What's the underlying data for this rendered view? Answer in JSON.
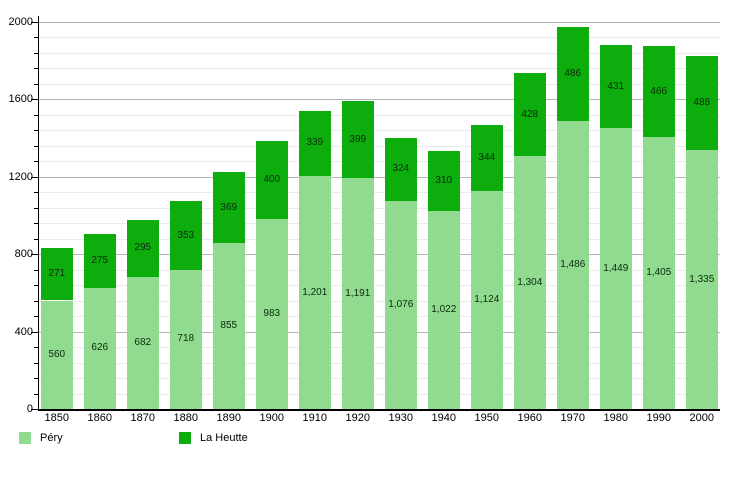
{
  "chart_data": {
    "type": "bar",
    "stacked": true,
    "title": "",
    "xlabel": "",
    "ylabel": "",
    "categories": [
      "1850",
      "1860",
      "1870",
      "1880",
      "1890",
      "1900",
      "1910",
      "1920",
      "1930",
      "1940",
      "1950",
      "1960",
      "1970",
      "1980",
      "1990",
      "2000"
    ],
    "series": [
      {
        "name": "Péry",
        "color": "#90db90",
        "values": [
          560,
          626,
          682,
          718,
          855,
          983,
          1201,
          1191,
          1076,
          1022,
          1124,
          1304,
          1486,
          1449,
          1405,
          1335
        ]
      },
      {
        "name": "La Heutte",
        "color": "#0cad0c",
        "values": [
          271,
          275,
          295,
          353,
          369,
          400,
          339,
          399,
          324,
          310,
          344,
          428,
          486,
          431,
          466,
          488
        ]
      }
    ],
    "ylim": [
      0,
      2000
    ],
    "y_major_ticks": [
      0,
      400,
      800,
      1200,
      1600,
      2000
    ],
    "y_minor_step": 80,
    "grid": true,
    "value_labels": true,
    "legend_position": "bottom-left"
  },
  "legend": {
    "items": [
      {
        "label": "Péry",
        "color": "#90db90"
      },
      {
        "label": "La Heutte",
        "color": "#0cad0c"
      }
    ]
  },
  "colors": {
    "background": "#ffffff",
    "major_grid": "#b5b5b5",
    "minor_grid": "#ebebeb",
    "axis": "#000000",
    "text": "#000000"
  }
}
